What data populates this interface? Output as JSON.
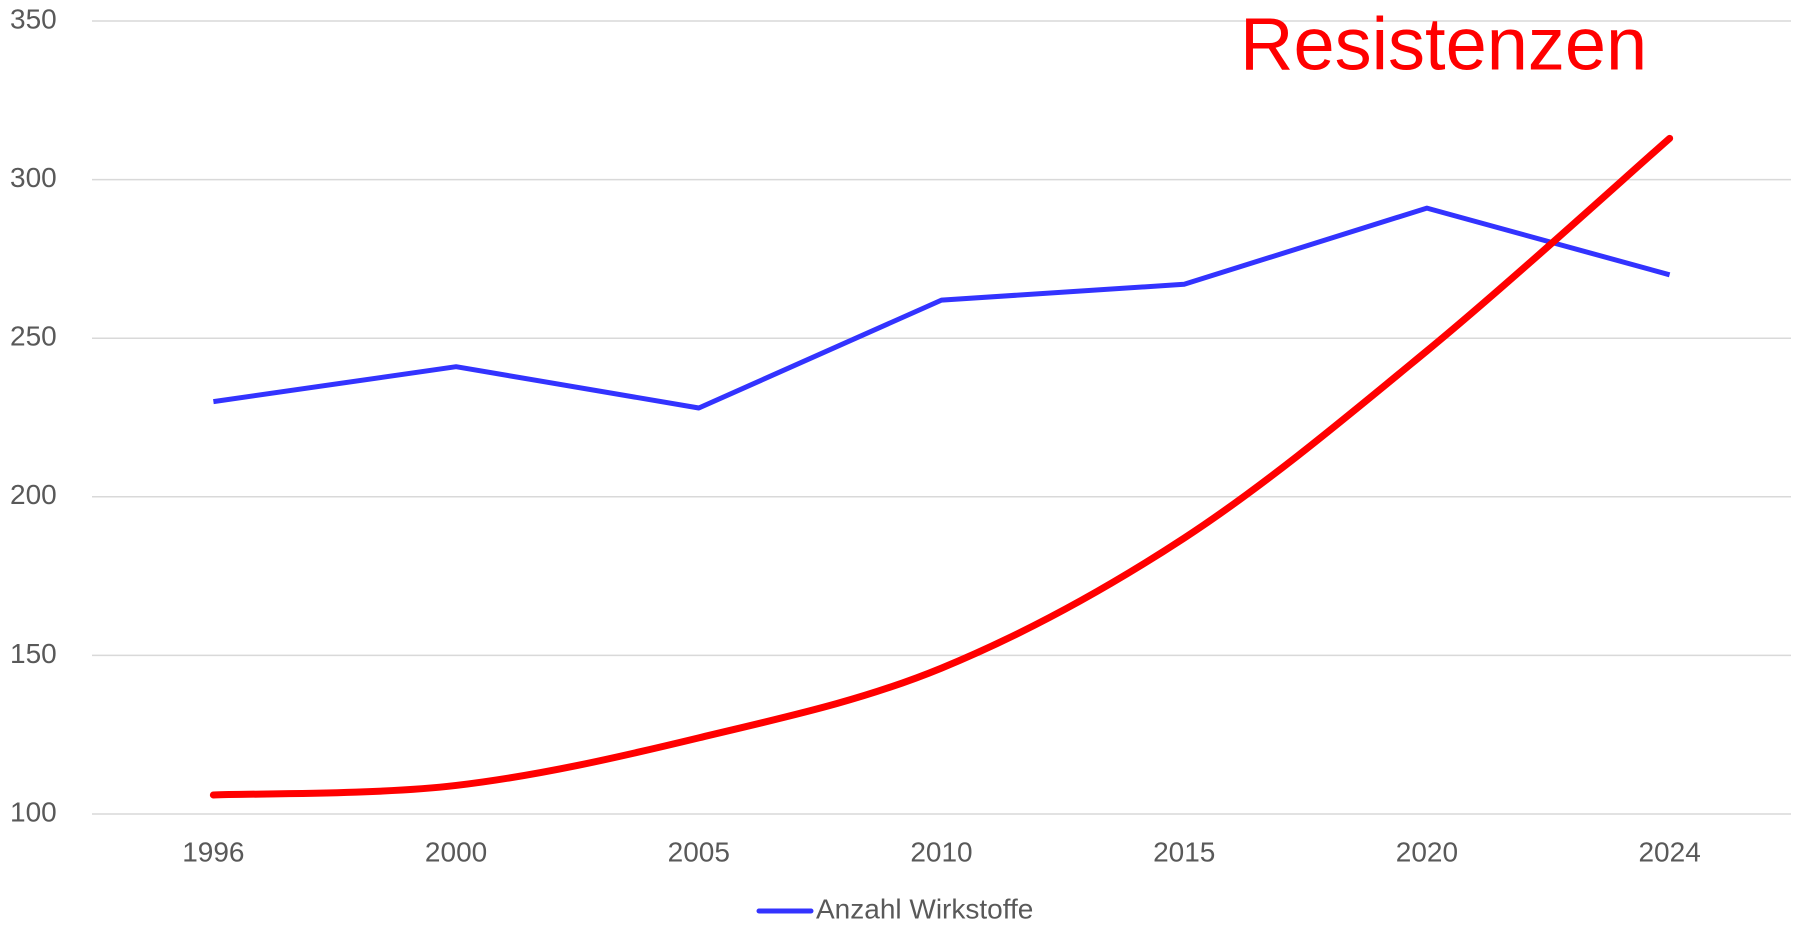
{
  "chart_data": {
    "type": "line",
    "categories": [
      "1996",
      "2000",
      "2005",
      "2010",
      "2015",
      "2020",
      "2024"
    ],
    "series": [
      {
        "name": "Anzahl Wirkstoffe",
        "color": "#3333ff",
        "values": [
          230,
          241,
          228,
          262,
          267,
          291,
          270
        ]
      }
    ],
    "annotation": {
      "text": "Resistenzen",
      "color": "#ff0000",
      "values": [
        106,
        109,
        124,
        146,
        187,
        246,
        313
      ]
    },
    "ylim": [
      100,
      350
    ],
    "yticks": [
      100,
      150,
      200,
      250,
      300,
      350
    ],
    "grid": true,
    "legend": "bottom"
  }
}
